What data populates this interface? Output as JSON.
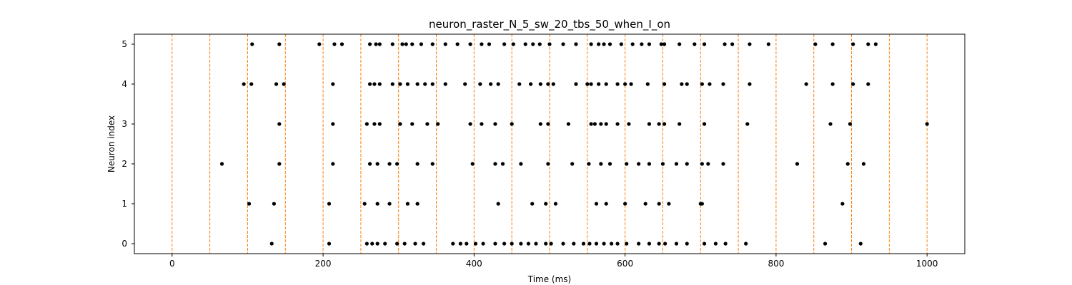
{
  "chart_data": {
    "type": "scatter",
    "title": "neuron_raster_N_5_sw_20_tbs_50_when_I_on",
    "xlabel": "Time (ms)",
    "ylabel": "Neuron index",
    "xlim": [
      -50,
      1050
    ],
    "ylim": [
      -0.25,
      5.25
    ],
    "x_ticks": [
      0,
      200,
      400,
      600,
      800,
      1000
    ],
    "y_ticks": [
      0,
      1,
      2,
      3,
      4,
      5
    ],
    "grid": false,
    "legend": "none",
    "marker_color": "#000000",
    "vline_color": "#ff7f0e",
    "vline_style": "dashed",
    "vlines": [
      0,
      50,
      100,
      150,
      200,
      250,
      300,
      350,
      400,
      450,
      500,
      550,
      600,
      650,
      700,
      750,
      800,
      850,
      900,
      950,
      1000
    ],
    "series": [
      {
        "neuron": 0,
        "x": [
          132,
          208,
          258,
          265,
          272,
          282,
          298,
          308,
          322,
          333,
          372,
          382,
          390,
          402,
          412,
          428,
          440,
          450,
          462,
          472,
          482,
          495,
          502,
          518,
          532,
          545,
          553,
          562,
          572,
          582,
          590,
          602,
          618,
          632,
          645,
          653,
          668,
          682,
          705,
          720,
          733,
          760,
          865,
          912
        ]
      },
      {
        "neuron": 1,
        "x": [
          102,
          135,
          208,
          255,
          272,
          288,
          312,
          325,
          432,
          477,
          495,
          508,
          562,
          575,
          600,
          627,
          645,
          658,
          700,
          702,
          888
        ]
      },
      {
        "neuron": 2,
        "x": [
          66,
          142,
          213,
          262,
          272,
          288,
          298,
          325,
          345,
          398,
          428,
          438,
          462,
          498,
          530,
          552,
          568,
          580,
          602,
          618,
          632,
          650,
          668,
          682,
          702,
          710,
          730,
          828,
          895,
          916
        ]
      },
      {
        "neuron": 3,
        "x": [
          142,
          213,
          258,
          268,
          275,
          302,
          318,
          338,
          352,
          395,
          410,
          428,
          450,
          488,
          498,
          525,
          555,
          560,
          568,
          575,
          590,
          605,
          632,
          645,
          652,
          672,
          705,
          762,
          872,
          898,
          1000
        ]
      },
      {
        "neuron": 4,
        "x": [
          95,
          105,
          138,
          148,
          213,
          262,
          268,
          275,
          292,
          302,
          312,
          325,
          335,
          345,
          362,
          388,
          408,
          422,
          432,
          460,
          475,
          488,
          498,
          505,
          535,
          550,
          555,
          565,
          575,
          590,
          600,
          608,
          630,
          652,
          675,
          682,
          702,
          712,
          730,
          765,
          840,
          875,
          902,
          922
        ]
      },
      {
        "neuron": 5,
        "x": [
          106,
          142,
          195,
          215,
          225,
          262,
          270,
          275,
          292,
          305,
          310,
          318,
          330,
          345,
          362,
          378,
          395,
          410,
          420,
          440,
          452,
          468,
          478,
          487,
          500,
          518,
          535,
          555,
          565,
          572,
          580,
          595,
          610,
          622,
          632,
          648,
          652,
          672,
          692,
          705,
          732,
          742,
          765,
          790,
          852,
          875,
          902,
          922,
          932
        ]
      }
    ]
  }
}
